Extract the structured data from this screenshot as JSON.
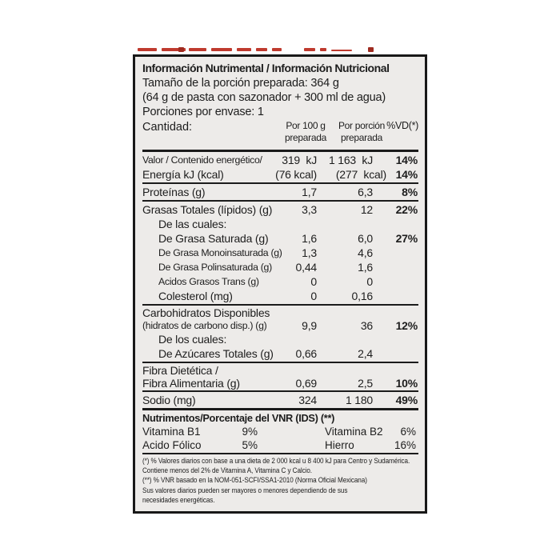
{
  "label": {
    "title": "Información Nutrimental / Información Nutricional",
    "serving": {
      "line1": "Tamaño de la porción preparada: 364 g",
      "line2": "(64 g de pasta con sazonador + 300 ml de agua)",
      "line3": "Porciones por envase: 1"
    },
    "columns": {
      "quantity_label": "Cantidad:",
      "col1_line1": "Por 100 g",
      "col1_line2": "preparada",
      "col2_line1": "Por porción",
      "col2_line2": "preparada",
      "col3": "%VD(*)"
    },
    "rows": [
      {
        "name": "Valor / Contenido energético/",
        "small": true,
        "v1": "319  kJ",
        "v2": "1 163  kJ",
        "vd": "14%"
      },
      {
        "name": "Energía kJ (kcal)",
        "v1": "(76 kcal)",
        "v2": "(277  kcal)",
        "vd": "14%",
        "widev2": true,
        "divider_after": "normal"
      },
      {
        "name": "Proteínas (g)",
        "v1": "1,7",
        "v2": "6,3",
        "vd": "8%",
        "divider_after": "normal"
      },
      {
        "name": "Grasas Totales (lípidos) (g)",
        "v1": "3,3",
        "v2": "12",
        "vd": "22%"
      },
      {
        "name": "De las cuales:",
        "indent": true
      },
      {
        "name": "De Grasa Saturada (g)",
        "indent": true,
        "v1": "1,6",
        "v2": "6,0",
        "vd": "27%"
      },
      {
        "name": "De Grasa Monoinsaturada (g)",
        "indent": true,
        "small": true,
        "v1": "1,3",
        "v2": "4,6"
      },
      {
        "name": "De Grasa Polinsaturada (g)",
        "indent": true,
        "small": true,
        "v1": "0,44",
        "v2": "1,6"
      },
      {
        "name": "Acidos Grasos Trans (g)",
        "indent": true,
        "small": true,
        "v1": "0",
        "v2": "0"
      },
      {
        "name": "Colesterol (mg)",
        "indent": true,
        "v1": "0",
        "v2": "0,16",
        "divider_after": "normal"
      },
      {
        "name": "Carbohidratos Disponibles",
        "name2": "(hidratos de carbono disp.) (g)",
        "name2_small": true,
        "v1": "9,9",
        "v2": "36",
        "vd": "12%"
      },
      {
        "name": "De los cuales:",
        "indent": true
      },
      {
        "name": "De Azúcares Totales (g)",
        "indent": true,
        "v1": "0,66",
        "v2": "2,4",
        "divider_after": "normal"
      },
      {
        "name": "Fibra Dietética /",
        "name2": "Fibra Alimentaria (g)",
        "v1": "0,69",
        "v2": "2,5",
        "vd": "10%",
        "divider_after": "normal"
      },
      {
        "name": "Sodio (mg)",
        "v1": "324",
        "v2": "1 180",
        "vd": "49%",
        "divider_after": "thick"
      }
    ],
    "micronutrients": {
      "header": "Nutrimentos/Porcentaje del VNR (IDS) (**)",
      "items": [
        {
          "name": "Vitamina B1",
          "value": "9%"
        },
        {
          "name": "Vitamina B2",
          "value": "6%"
        },
        {
          "name": "Acido Fólico",
          "value": "5%"
        },
        {
          "name": "Hierro",
          "value": "16%"
        }
      ]
    },
    "footnotes": [
      "(*) % Valores diarios con base a una dieta de 2 000 kcal u 8 400 kJ para Centro y Sudamérica.",
      "Contiene menos del 2% de Vitamina A, Vitamina C y Calcio.",
      "(**) % VNR basado en la NOM-051-SCFI/SSA1-2010 (Norma Oficial Mexicana)",
      "Sus valores diarios pueden ser mayores o menores dependiendo de sus",
      "necesidades energéticas."
    ]
  },
  "colors": {
    "label_background": "#edebe9",
    "border": "#181818",
    "text": "#1d1d1d",
    "red_strip": "#bf3a2e"
  }
}
